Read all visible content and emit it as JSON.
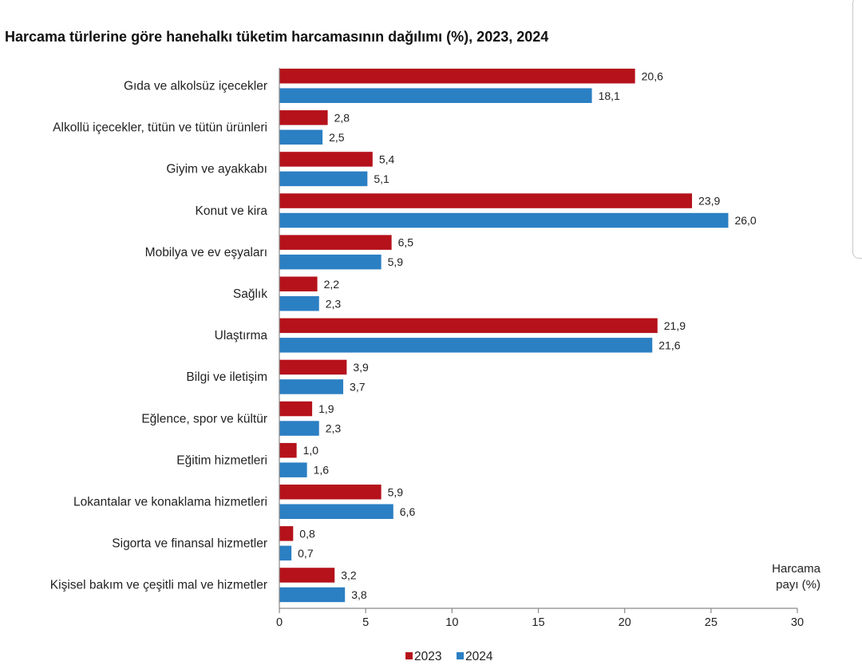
{
  "chart_data": {
    "type": "bar",
    "orientation": "horizontal",
    "title": "Harcama türlerine göre hanehalkı tüketim harcamasının dağılımı (%), 2023, 2024",
    "xlabel_line1": "Harcama",
    "xlabel_line2": "payı  (%)",
    "xlim": [
      0,
      30
    ],
    "xticks": [
      0,
      5,
      10,
      15,
      20,
      25,
      30
    ],
    "grid": false,
    "legend_position": "bottom",
    "categories": [
      "Gıda ve alkolsüz içecekler",
      "Alkollü içecekler, tütün ve tütün ürünleri",
      "Giyim ve ayakkabı",
      "Konut ve kira",
      "Mobilya ve ev eşyaları",
      "Sağlık",
      "Ulaştırma",
      "Bilgi ve iletişim",
      "Eğlence, spor ve kültür",
      "Eğitim hizmetleri",
      "Lokantalar ve konaklama hizmetleri",
      "Sigorta ve finansal hizmetler",
      "Kişisel bakım ve çeşitli mal ve hizmetler"
    ],
    "series": [
      {
        "name": "2023",
        "color": "#b5121b",
        "values": [
          20.6,
          2.8,
          5.4,
          23.9,
          6.5,
          2.2,
          21.9,
          3.9,
          1.9,
          1.0,
          5.9,
          0.8,
          3.2
        ],
        "labels": [
          "20,6",
          "2,8",
          "5,4",
          "23,9",
          "6,5",
          "2,2",
          "21,9",
          "3,9",
          "1,9",
          "1,0",
          "5,9",
          "0,8",
          "3,2"
        ]
      },
      {
        "name": "2024",
        "color": "#2b7fc3",
        "values": [
          18.1,
          2.5,
          5.1,
          26.0,
          5.9,
          2.3,
          21.6,
          3.7,
          2.3,
          1.6,
          6.6,
          0.7,
          3.8
        ],
        "labels": [
          "18,1",
          "2,5",
          "5,1",
          "26,0",
          "5,9",
          "2,3",
          "21,6",
          "3,7",
          "2,3",
          "1,6",
          "6,6",
          "0,7",
          "3,8"
        ]
      }
    ]
  }
}
